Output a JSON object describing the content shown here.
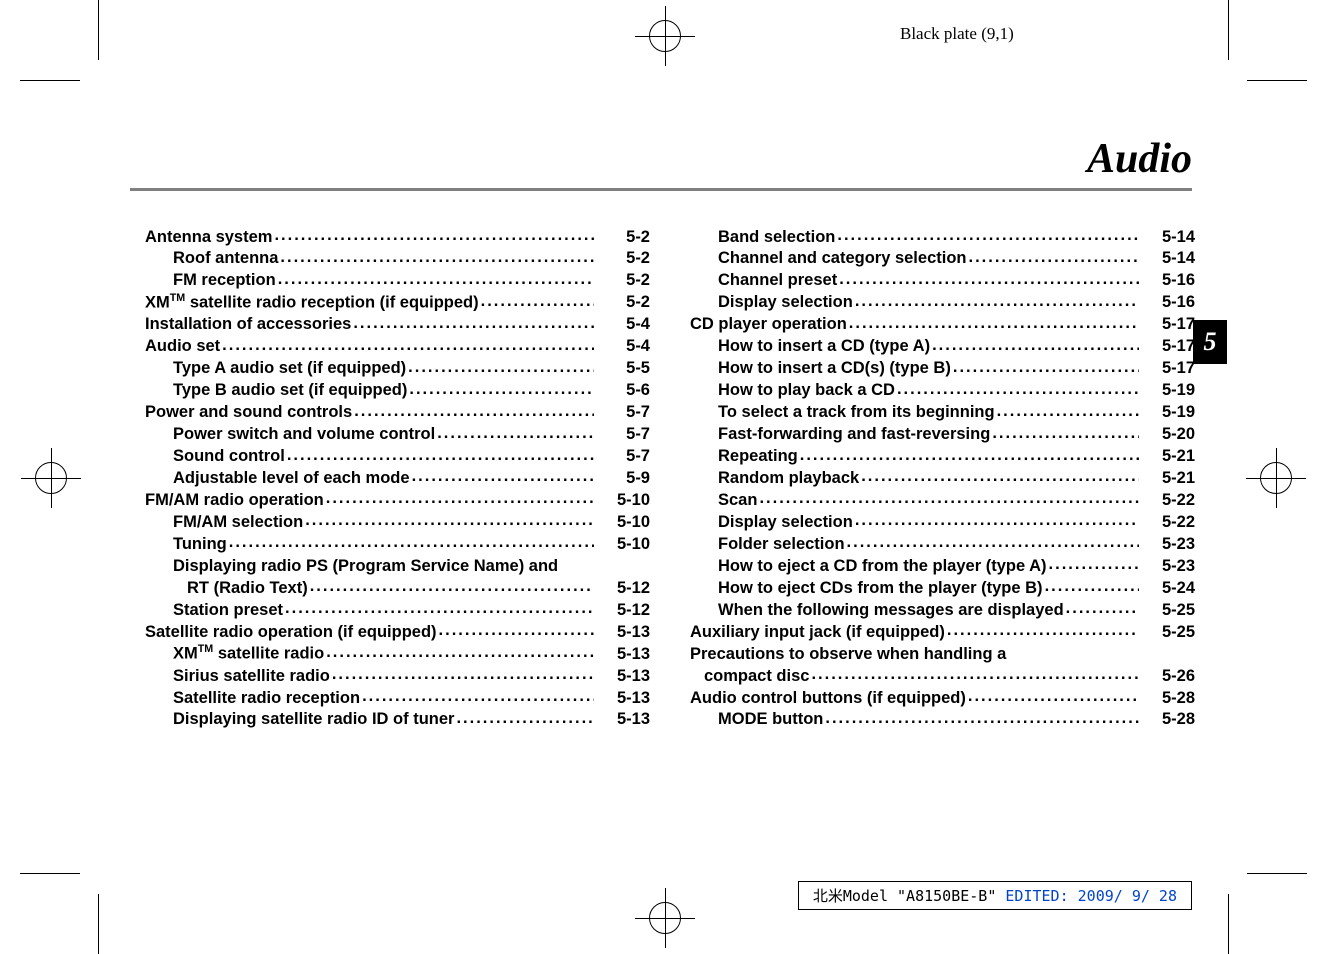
{
  "plate_label": "Black plate (9,1)",
  "chapter_title": "Audio",
  "tab_number": "5",
  "footer": {
    "prefix": "北米Model \"A8150BE-B\" ",
    "edited": "EDITED: 2009/ 9/ 28"
  },
  "columns": [
    [
      {
        "level": 0,
        "label": "Antenna system",
        "page": "5-2"
      },
      {
        "level": 1,
        "label": "Roof antenna",
        "page": "5-2"
      },
      {
        "level": 1,
        "label": "FM reception",
        "page": "5-2"
      },
      {
        "level": 0,
        "label": "XM<span class='sup'>TM</span> satellite radio reception (if equipped)",
        "page": "5-2"
      },
      {
        "level": 0,
        "label": "Installation of accessories",
        "page": "5-4"
      },
      {
        "level": 0,
        "label": "Audio set",
        "page": "5-4"
      },
      {
        "level": 1,
        "label": "Type A audio set (if equipped)",
        "page": "5-5"
      },
      {
        "level": 1,
        "label": "Type B audio set (if equipped)",
        "page": "5-6"
      },
      {
        "level": 0,
        "label": "Power and sound controls",
        "page": "5-7"
      },
      {
        "level": 1,
        "label": "Power switch and volume control",
        "page": "5-7"
      },
      {
        "level": 1,
        "label": "Sound control",
        "page": "5-7"
      },
      {
        "level": 1,
        "label": "Adjustable level of each mode",
        "page": "5-9"
      },
      {
        "level": 0,
        "label": "FM/AM radio operation",
        "page": "5-10"
      },
      {
        "level": 1,
        "label": "FM/AM selection",
        "page": "5-10"
      },
      {
        "level": 1,
        "label": "Tuning",
        "page": "5-10"
      },
      {
        "level": 1,
        "label": "Displaying radio PS (Program Service Name) and",
        "nopage": true
      },
      {
        "level": 1,
        "label": "RT (Radio Text)",
        "page": "5-12",
        "cont": true
      },
      {
        "level": 1,
        "label": "Station preset",
        "page": "5-12"
      },
      {
        "level": 0,
        "label": "Satellite radio operation (if equipped)",
        "page": "5-13"
      },
      {
        "level": 1,
        "label": "XM<span class='sup'>TM</span> satellite radio",
        "page": "5-13"
      },
      {
        "level": 1,
        "label": "Sirius satellite radio",
        "page": "5-13"
      },
      {
        "level": 1,
        "label": "Satellite radio reception",
        "page": "5-13"
      },
      {
        "level": 1,
        "label": "Displaying satellite radio ID of tuner",
        "page": "5-13"
      }
    ],
    [
      {
        "level": 1,
        "label": "Band selection",
        "page": "5-14"
      },
      {
        "level": 1,
        "label": "Channel and category selection",
        "page": "5-14"
      },
      {
        "level": 1,
        "label": "Channel preset",
        "page": "5-16"
      },
      {
        "level": 1,
        "label": "Display selection",
        "page": "5-16"
      },
      {
        "level": 0,
        "label": "CD player operation",
        "page": "5-17"
      },
      {
        "level": 1,
        "label": "How to insert a CD (type A)",
        "page": "5-17"
      },
      {
        "level": 1,
        "label": "How to insert a CD(s) (type B)",
        "page": "5-17"
      },
      {
        "level": 1,
        "label": "How to play back a CD",
        "page": "5-19"
      },
      {
        "level": 1,
        "label": "To select a track from its beginning",
        "page": "5-19"
      },
      {
        "level": 1,
        "label": "Fast-forwarding and fast-reversing",
        "page": "5-20"
      },
      {
        "level": 1,
        "label": "Repeating",
        "page": "5-21"
      },
      {
        "level": 1,
        "label": "Random playback",
        "page": "5-21"
      },
      {
        "level": 1,
        "label": "Scan",
        "page": "5-22"
      },
      {
        "level": 1,
        "label": "Display selection",
        "page": "5-22"
      },
      {
        "level": 1,
        "label": "Folder selection",
        "page": "5-23"
      },
      {
        "level": 1,
        "label": "How to eject a CD from the player (type A)",
        "page": "5-23"
      },
      {
        "level": 1,
        "label": "How to eject CDs from the player (type B)",
        "page": "5-24"
      },
      {
        "level": 1,
        "label": "When the following messages are displayed",
        "page": "5-25"
      },
      {
        "level": 0,
        "label": "Auxiliary input jack (if equipped)",
        "page": "5-25"
      },
      {
        "level": 0,
        "label": "Precautions to observe when handling a",
        "nopage": true
      },
      {
        "level": 0,
        "label": "compact disc",
        "page": "5-26",
        "cont": true
      },
      {
        "level": 0,
        "label": "Audio control buttons (if equipped)",
        "page": "5-28"
      },
      {
        "level": 1,
        "label": "MODE button",
        "page": "5-28"
      }
    ]
  ]
}
